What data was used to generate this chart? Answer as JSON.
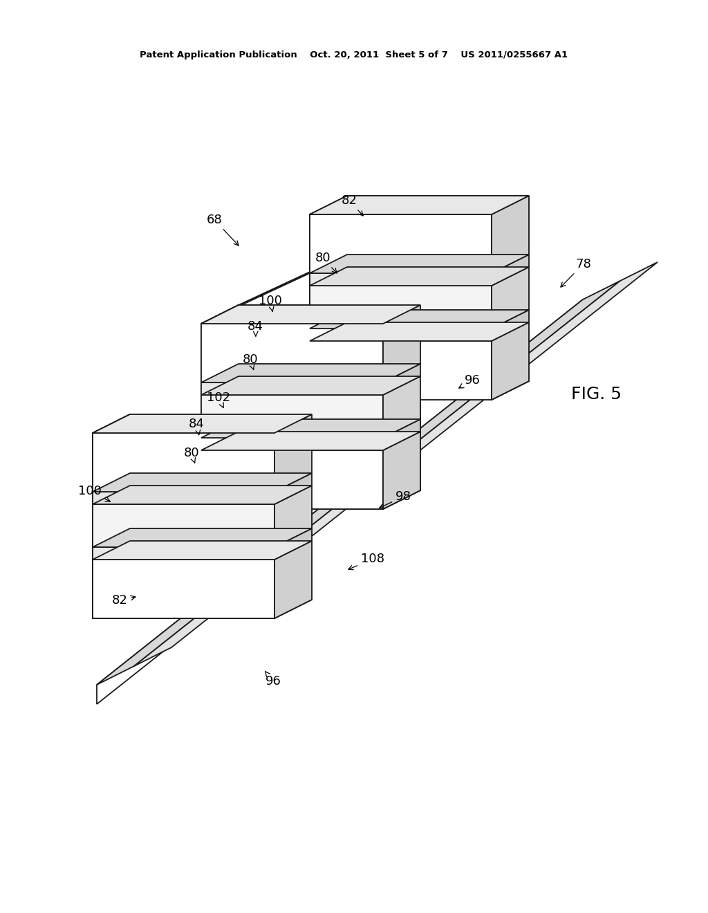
{
  "background_color": "#ffffff",
  "line_color": "#1a1a1a",
  "header_text": "Patent Application Publication    Oct. 20, 2011  Sheet 5 of 7    US 2011/0255667 A1",
  "fig_label": "FIG. 5",
  "fc_front": "#ffffff",
  "fc_top": "#e8e8e8",
  "fc_right": "#d0d0d0",
  "fc_plate_face": "#ffffff",
  "fc_plate_top": "#d8d8d8",
  "fc_plate_back": "#c0c0c0"
}
